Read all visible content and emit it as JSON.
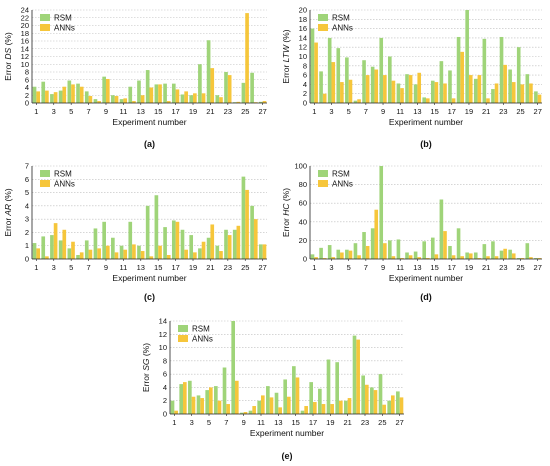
{
  "colors": {
    "rsm": "#9fd479",
    "anns": "#f6c63b",
    "grid": "#bdbdbd",
    "axis": "#222222"
  },
  "chart_data": [
    {
      "type": "bar",
      "panel": "(a)",
      "xlabel": "Experiment number",
      "ylabel": "Error DS (%)",
      "ylim": [
        0,
        24
      ],
      "yticks": [
        0,
        2,
        4,
        6,
        8,
        10,
        12,
        14,
        16,
        18,
        20,
        22,
        24
      ],
      "xticks": [
        1,
        3,
        5,
        7,
        9,
        11,
        13,
        15,
        17,
        19,
        21,
        23,
        25,
        27
      ],
      "categories": [
        1,
        2,
        3,
        4,
        5,
        6,
        7,
        8,
        9,
        10,
        11,
        12,
        13,
        14,
        15,
        16,
        17,
        18,
        19,
        20,
        21,
        22,
        23,
        24,
        25,
        26,
        27
      ],
      "legend_position": "top-left",
      "series": [
        {
          "name": "RSM",
          "values": [
            4.2,
            5.5,
            2.3,
            3.2,
            5.8,
            5.0,
            3.0,
            1.0,
            6.8,
            2.0,
            1.0,
            4.2,
            5.8,
            8.5,
            4.8,
            5.0,
            5.0,
            2.2,
            2.0,
            10.0,
            16.2,
            2.0,
            8.0,
            0.2,
            5.2,
            7.8,
            0.3
          ]
        },
        {
          "name": "ANNs",
          "values": [
            3.0,
            3.2,
            2.8,
            4.2,
            4.8,
            4.2,
            1.8,
            0.5,
            6.2,
            1.8,
            1.2,
            0.5,
            2.0,
            4.0,
            4.8,
            0.5,
            3.5,
            3.0,
            2.5,
            2.5,
            9.0,
            1.5,
            7.2,
            0.3,
            23.2,
            0.2,
            0.5
          ]
        }
      ]
    },
    {
      "type": "bar",
      "panel": "(b)",
      "xlabel": "Experiment number",
      "ylabel": "Error LTW (%)",
      "ylim": [
        0,
        20
      ],
      "yticks": [
        0,
        2,
        4,
        6,
        8,
        10,
        12,
        14,
        16,
        18,
        20
      ],
      "xticks": [
        1,
        3,
        5,
        7,
        9,
        11,
        13,
        15,
        17,
        19,
        21,
        23,
        25,
        27
      ],
      "categories": [
        1,
        2,
        3,
        4,
        5,
        6,
        7,
        8,
        9,
        10,
        11,
        12,
        13,
        14,
        15,
        16,
        17,
        18,
        19,
        20,
        21,
        22,
        23,
        24,
        25,
        26,
        27
      ],
      "legend_position": "top-left",
      "series": [
        {
          "name": "RSM",
          "values": [
            16.0,
            6.8,
            14.0,
            11.8,
            9.8,
            0.5,
            9.2,
            7.8,
            14.0,
            10.0,
            4.2,
            6.2,
            4.0,
            1.2,
            4.8,
            9.0,
            7.0,
            14.2,
            20.2,
            5.2,
            13.8,
            3.0,
            14.2,
            7.2,
            12.0,
            6.2,
            2.5
          ]
        },
        {
          "name": "ANNs",
          "values": [
            13.0,
            2.0,
            8.8,
            4.5,
            5.0,
            0.8,
            6.0,
            7.2,
            6.0,
            4.8,
            3.2,
            6.0,
            6.5,
            1.0,
            4.5,
            4.2,
            1.0,
            11.0,
            6.0,
            6.0,
            1.0,
            4.2,
            8.2,
            4.5,
            4.0,
            4.2,
            1.8
          ]
        }
      ]
    },
    {
      "type": "bar",
      "panel": "(c)",
      "xlabel": "Experiment number",
      "ylabel": "Error AR (%)",
      "ylim": [
        0,
        7
      ],
      "yticks": [
        0,
        1,
        2,
        3,
        4,
        5,
        6,
        7
      ],
      "xticks": [
        1,
        3,
        5,
        7,
        9,
        11,
        13,
        15,
        17,
        19,
        21,
        23,
        25,
        27
      ],
      "categories": [
        1,
        2,
        3,
        4,
        5,
        6,
        7,
        8,
        9,
        10,
        11,
        12,
        13,
        14,
        15,
        16,
        17,
        18,
        19,
        20,
        21,
        22,
        23,
        24,
        25,
        26,
        27
      ],
      "legend_position": "top-left",
      "series": [
        {
          "name": "RSM",
          "values": [
            1.2,
            1.7,
            1.8,
            1.4,
            0.8,
            0.3,
            1.4,
            2.3,
            2.8,
            1.6,
            1.0,
            2.8,
            1.0,
            4.0,
            4.8,
            2.4,
            2.9,
            2.2,
            1.8,
            0.8,
            1.6,
            1.0,
            2.2,
            2.2,
            6.2,
            4.0,
            1.1
          ]
        },
        {
          "name": "ANNs",
          "values": [
            0.8,
            0.2,
            2.7,
            2.2,
            1.3,
            0.5,
            0.7,
            0.8,
            1.0,
            0.5,
            0.7,
            1.1,
            0.6,
            0.2,
            1.0,
            0.3,
            2.8,
            0.7,
            0.5,
            1.3,
            2.6,
            0.6,
            1.8,
            2.5,
            5.2,
            3.0,
            1.1
          ]
        }
      ]
    },
    {
      "type": "bar",
      "panel": "(d)",
      "xlabel": "Experiment number",
      "ylabel": "Error HC (%)",
      "ylim": [
        0,
        100
      ],
      "yticks": [
        0,
        20,
        40,
        60,
        80,
        100
      ],
      "xticks": [
        1,
        3,
        5,
        7,
        9,
        11,
        13,
        15,
        17,
        19,
        21,
        23,
        25,
        27
      ],
      "categories": [
        1,
        2,
        3,
        4,
        5,
        6,
        7,
        8,
        9,
        10,
        11,
        12,
        13,
        14,
        15,
        16,
        17,
        18,
        19,
        20,
        21,
        22,
        23,
        24,
        25,
        26,
        27
      ],
      "legend_position": "top-left",
      "series": [
        {
          "name": "RSM",
          "values": [
            5,
            12,
            15,
            10,
            10,
            17,
            29,
            33,
            103,
            20,
            21,
            7,
            8,
            19,
            23,
            64,
            14,
            33,
            7,
            7,
            16,
            19,
            9,
            10,
            1,
            17,
            1
          ]
        },
        {
          "name": "ANNs",
          "values": [
            2,
            1,
            2,
            7,
            9,
            4,
            14,
            53,
            17,
            3,
            1,
            4,
            2,
            1,
            5,
            30,
            4,
            3,
            6,
            1,
            3,
            3,
            11,
            6,
            1,
            2,
            1
          ]
        }
      ]
    },
    {
      "type": "bar",
      "panel": "(e)",
      "xlabel": "Experiment number",
      "ylabel": "Error SG (%)",
      "ylim": [
        0,
        14
      ],
      "yticks": [
        0,
        2,
        4,
        6,
        8,
        10,
        12,
        14
      ],
      "xticks": [
        1,
        3,
        5,
        7,
        9,
        11,
        13,
        15,
        17,
        19,
        21,
        23,
        25,
        27
      ],
      "categories": [
        1,
        2,
        3,
        4,
        5,
        6,
        7,
        8,
        9,
        10,
        11,
        12,
        13,
        14,
        15,
        16,
        17,
        18,
        19,
        20,
        21,
        22,
        23,
        24,
        25,
        26,
        27
      ],
      "legend_position": "top-left",
      "series": [
        {
          "name": "RSM",
          "values": [
            2.0,
            4.5,
            5.0,
            2.8,
            3.6,
            4.2,
            7.0,
            14.0,
            0.2,
            0.5,
            2.0,
            4.2,
            3.2,
            5.2,
            7.2,
            0.5,
            4.8,
            3.8,
            8.2,
            7.8,
            2.0,
            11.8,
            5.8,
            4.0,
            6.0,
            2.0,
            3.4
          ]
        },
        {
          "name": "ANNs",
          "values": [
            0.5,
            4.8,
            2.6,
            2.4,
            4.0,
            2.0,
            1.5,
            5.0,
            0.3,
            1.2,
            2.8,
            2.5,
            1.0,
            2.6,
            5.5,
            1.2,
            1.8,
            1.5,
            1.5,
            2.0,
            2.4,
            11.2,
            4.4,
            3.6,
            1.4,
            2.8,
            2.5
          ]
        }
      ]
    }
  ]
}
